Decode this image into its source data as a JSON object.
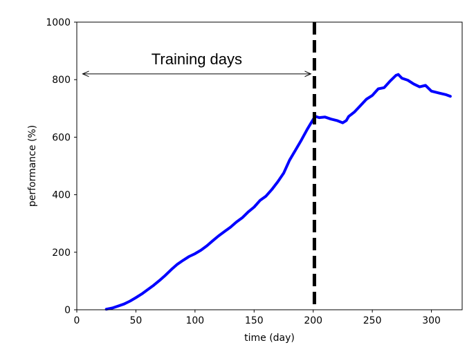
{
  "chart_data": {
    "type": "line",
    "title": "",
    "xlabel": "time (day)",
    "ylabel": "performance (%)",
    "xlim": [
      0,
      326
    ],
    "ylim": [
      0,
      1000
    ],
    "xticks": [
      0,
      50,
      100,
      150,
      200,
      250,
      300
    ],
    "yticks": [
      0,
      200,
      400,
      600,
      800,
      1000
    ],
    "grid": false,
    "series": [
      {
        "color": "#0000ff",
        "x": [
          25,
          30,
          35,
          40,
          45,
          50,
          55,
          60,
          65,
          70,
          75,
          80,
          85,
          90,
          95,
          100,
          105,
          110,
          115,
          120,
          125,
          130,
          135,
          140,
          145,
          150,
          155,
          160,
          165,
          170,
          175,
          180,
          185,
          190,
          195,
          200,
          202,
          205,
          210,
          215,
          220,
          225,
          228,
          230,
          235,
          240,
          245,
          250,
          255,
          260,
          265,
          270,
          272,
          275,
          280,
          285,
          290,
          295,
          300,
          305,
          308,
          312,
          316
        ],
        "y": [
          2,
          6,
          13,
          20,
          30,
          42,
          55,
          70,
          85,
          102,
          120,
          140,
          158,
          172,
          185,
          195,
          207,
          222,
          240,
          257,
          272,
          287,
          305,
          320,
          340,
          357,
          380,
          395,
          418,
          445,
          475,
          520,
          555,
          590,
          628,
          662,
          672,
          668,
          670,
          663,
          658,
          650,
          658,
          672,
          688,
          710,
          732,
          745,
          768,
          772,
          795,
          815,
          818,
          805,
          798,
          785,
          775,
          780,
          760,
          755,
          752,
          748,
          742
        ]
      }
    ],
    "annotations": {
      "vline_x": 201,
      "arrow_x": [
        5,
        198
      ],
      "arrow_y": 820,
      "arrow_text": "Training days"
    }
  }
}
